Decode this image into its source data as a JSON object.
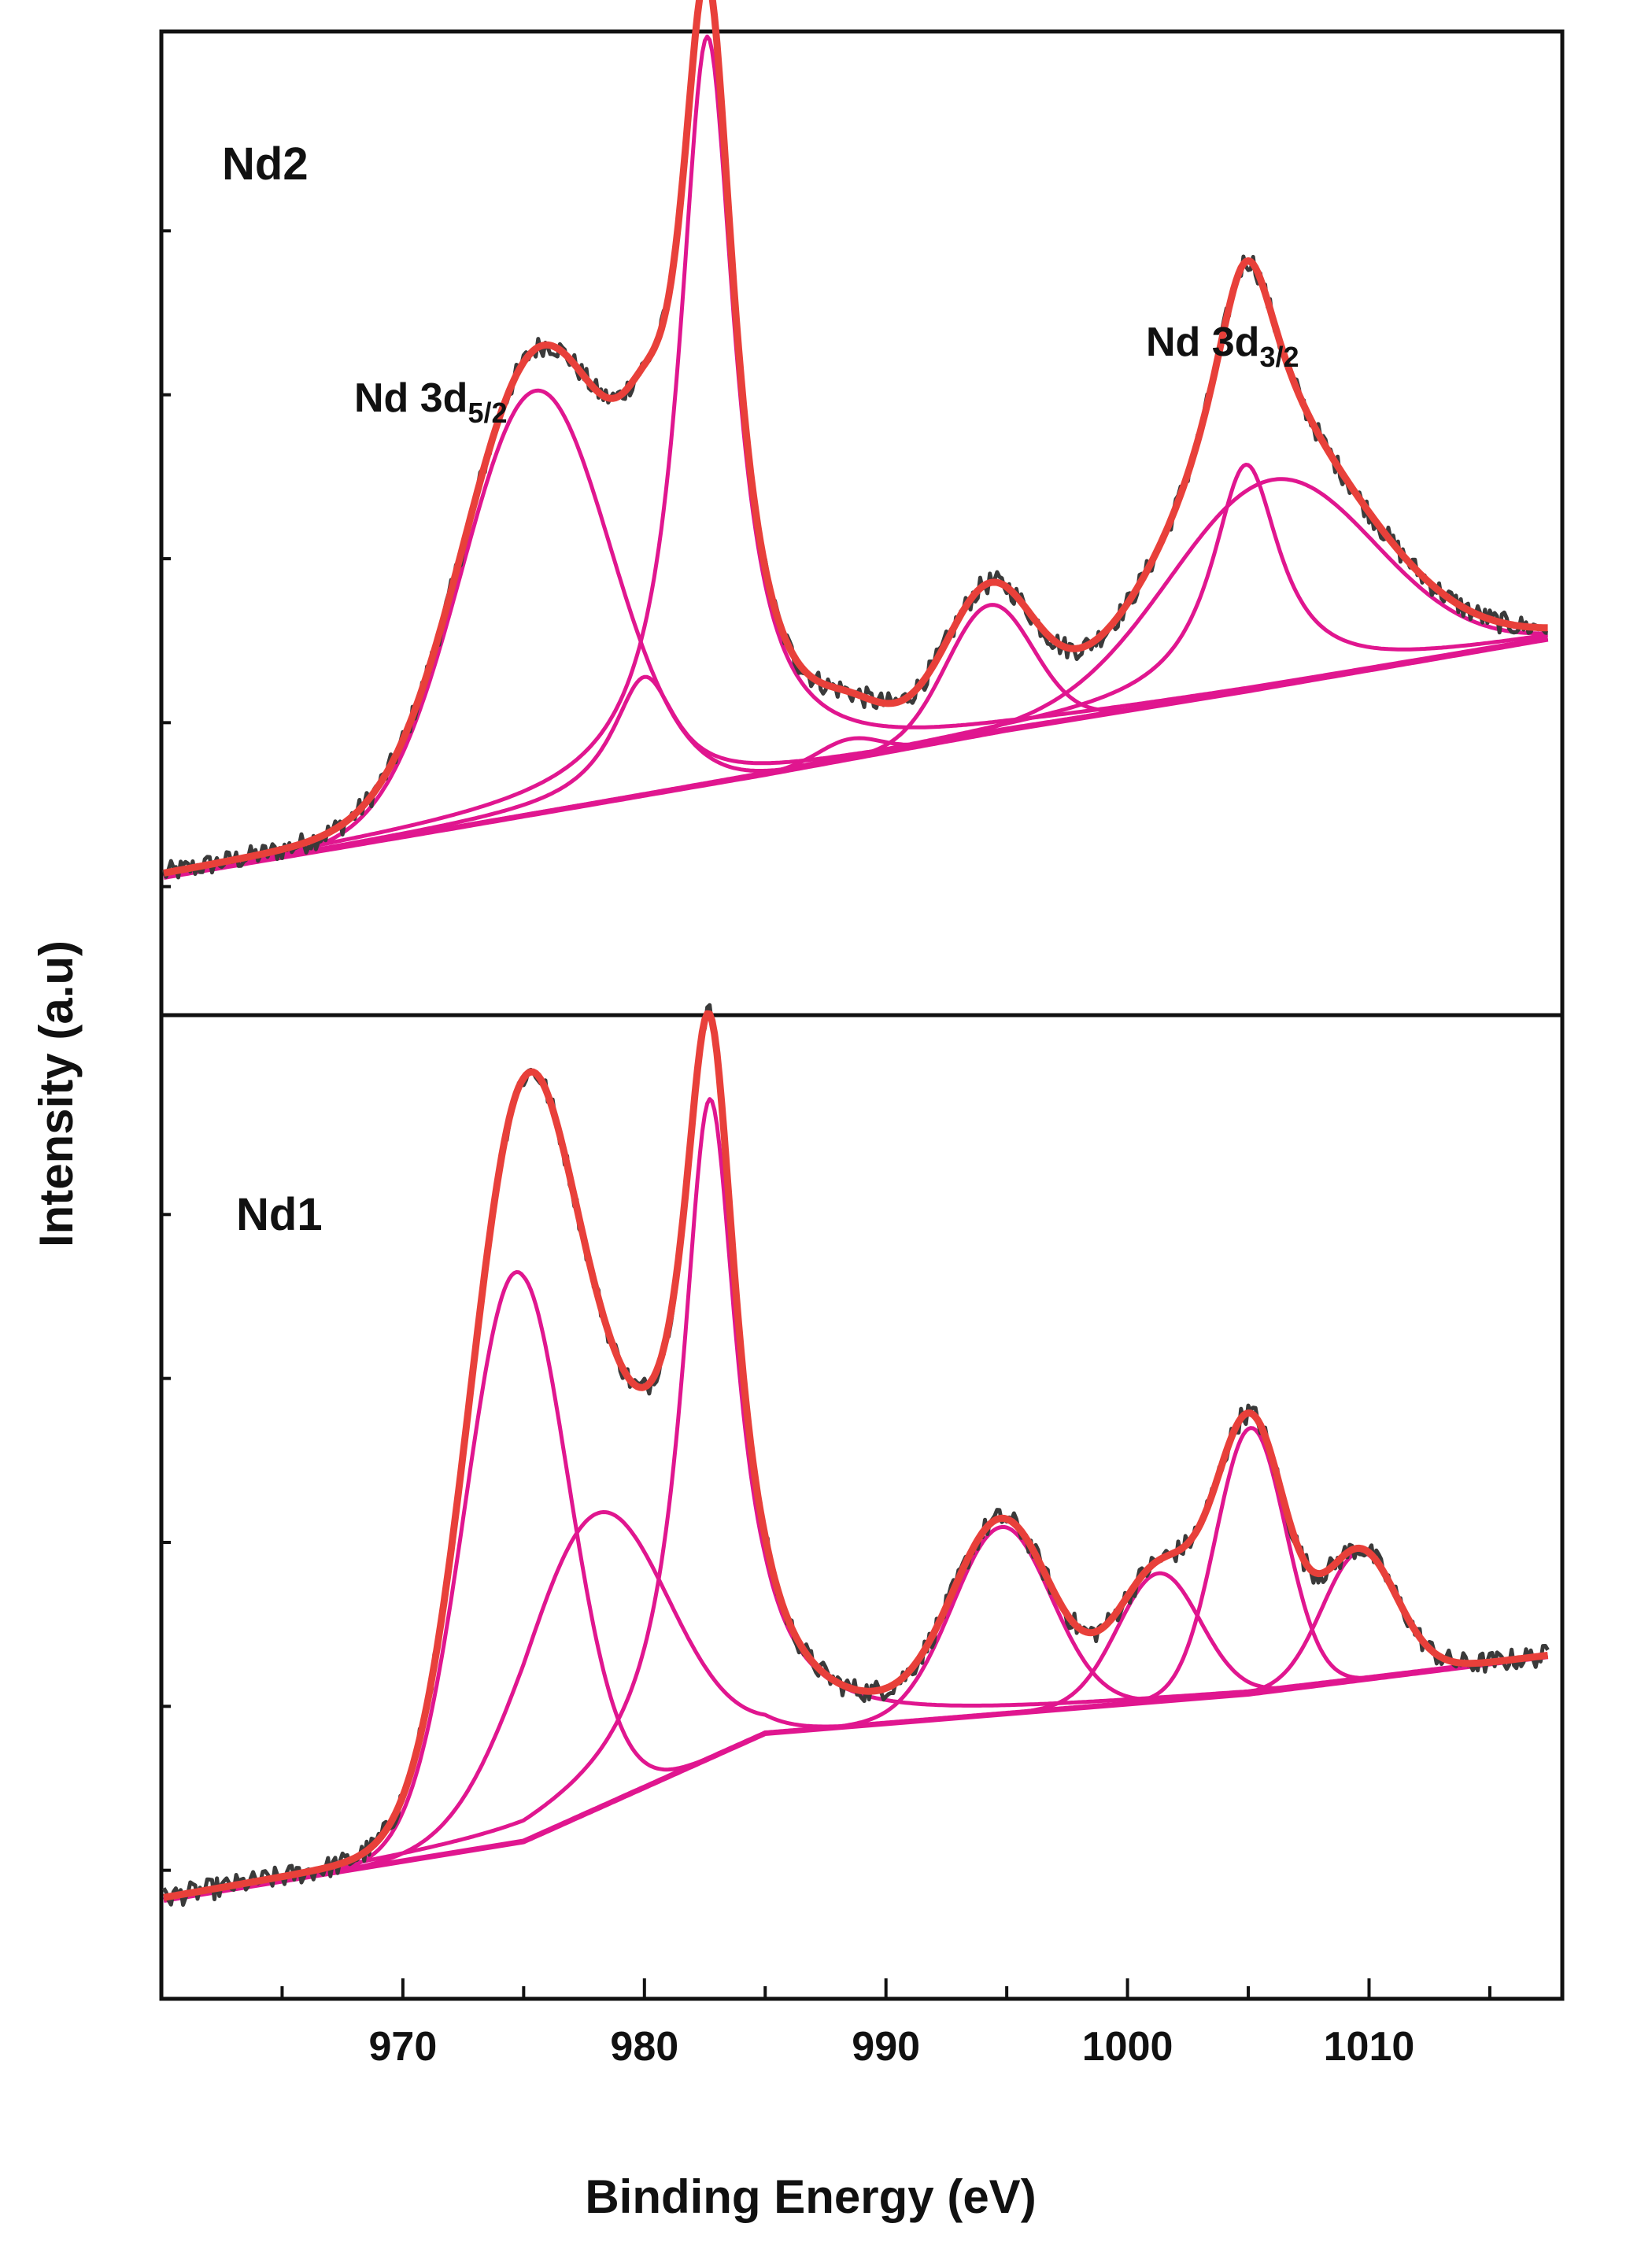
{
  "chart_data": {
    "type": "line",
    "figure_kind": "XPS Nd 3d deconvoluted spectra (stacked panels)",
    "xlabel": "Binding Energy (eV)",
    "ylabel": "Intensity (a.u)",
    "xlim": [
      960,
      1018
    ],
    "x_ticks": [
      970,
      980,
      990,
      1000,
      1010
    ],
    "y_ticks_labeled": false,
    "panels": [
      {
        "label": "Nd2",
        "ylim": [
          0,
          1
        ],
        "annotations": [
          {
            "text": "Nd 3d",
            "subscript": "5/2",
            "x": 975.5,
            "y": 0.72
          },
          {
            "text": "Nd 3d",
            "subscript": "3/2",
            "x": 1004.5,
            "y": 0.82
          }
        ],
        "background": {
          "x": [
            960,
            972,
            985,
            995,
            1005,
            1018
          ],
          "y": [
            0.14,
            0.19,
            0.245,
            0.29,
            0.33,
            0.385
          ]
        },
        "peaks": [
          {
            "center": 975.5,
            "amplitude": 0.43,
            "fwhm": 7.2,
            "shape": "gaussian"
          },
          {
            "center": 980.0,
            "amplitude": 0.12,
            "fwhm": 3.2,
            "shape": "lorentzian"
          },
          {
            "center": 982.6,
            "amplitude": 0.76,
            "fwhm": 2.8,
            "shape": "lorentzian"
          },
          {
            "center": 988.5,
            "amplitude": 0.02,
            "fwhm": 3.0,
            "shape": "gaussian"
          },
          {
            "center": 994.3,
            "amplitude": 0.13,
            "fwhm": 4.2,
            "shape": "gaussian"
          },
          {
            "center": 1004.9,
            "amplitude": 0.23,
            "fwhm": 3.4,
            "shape": "lorentzian"
          },
          {
            "center": 1006.0,
            "amplitude": 0.21,
            "fwhm": 10.0,
            "shape": "gaussian"
          }
        ],
        "series": [
          {
            "name": "Raw data",
            "color": "#3a3a3a"
          },
          {
            "name": "Fitted envelope",
            "color": "#e8403a"
          },
          {
            "name": "Fitted components",
            "color": "#e0168f"
          }
        ]
      },
      {
        "label": "Nd1",
        "ylim": [
          0,
          1
        ],
        "annotations": [],
        "background": {
          "x": [
            960,
            975,
            985,
            995,
            1005,
            1018
          ],
          "y": [
            0.1,
            0.16,
            0.27,
            0.29,
            0.31,
            0.35
          ]
        },
        "peaks": [
          {
            "center": 974.7,
            "amplitude": 0.58,
            "fwhm": 5.0,
            "shape": "gaussian"
          },
          {
            "center": 978.0,
            "amplitude": 0.3,
            "fwhm": 7.0,
            "shape": "gaussian"
          },
          {
            "center": 982.7,
            "amplitude": 0.67,
            "fwhm": 2.8,
            "shape": "lorentzian"
          },
          {
            "center": 994.8,
            "amplitude": 0.19,
            "fwhm": 4.8,
            "shape": "gaussian"
          },
          {
            "center": 1001.3,
            "amplitude": 0.13,
            "fwhm": 4.0,
            "shape": "gaussian"
          },
          {
            "center": 1005.1,
            "amplitude": 0.27,
            "fwhm": 3.4,
            "shape": "gaussian"
          },
          {
            "center": 1009.6,
            "amplitude": 0.13,
            "fwhm": 3.6,
            "shape": "gaussian"
          }
        ],
        "series": [
          {
            "name": "Raw data",
            "color": "#3a3a3a"
          },
          {
            "name": "Fitted envelope",
            "color": "#e8403a"
          },
          {
            "name": "Fitted components",
            "color": "#e0168f"
          }
        ]
      }
    ]
  }
}
